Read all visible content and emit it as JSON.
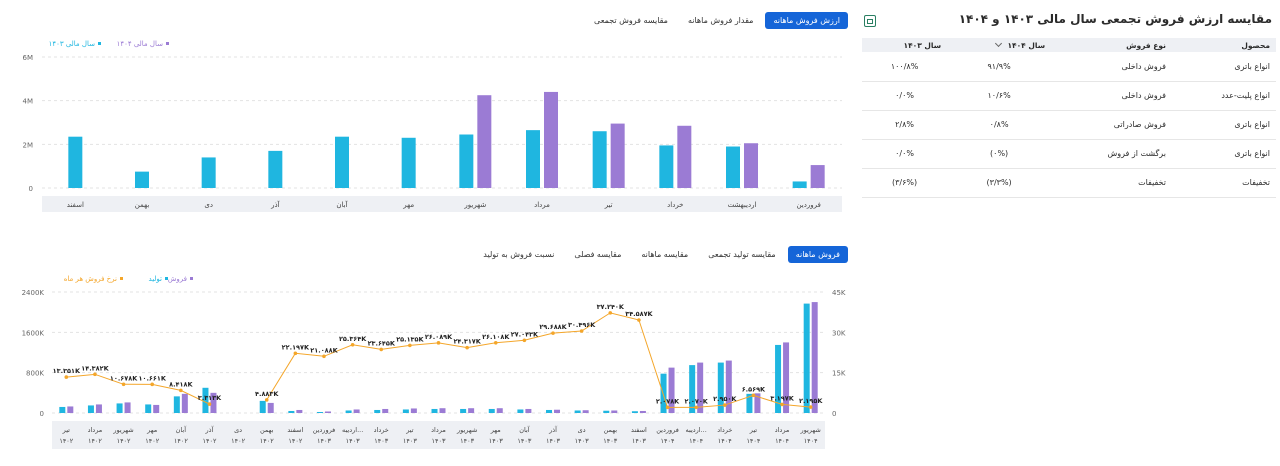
{
  "top_tabs": [
    "ارزش فروش ماهانه",
    "مقدار فروش ماهانه",
    "مقایسه فروش تجمعی"
  ],
  "bottom_tabs": [
    "فروش ماهانه",
    "مقایسه تولید تجمعی",
    "مقایسه ماهانه",
    "مقایسه فصلی",
    "نسبت فروش به تولید"
  ],
  "panel": {
    "title": "مقایسه ارزش فروش تجمعی سال مالی ۱۴۰۳ و ۱۴۰۴",
    "headers": [
      "محصول",
      "نوع فروش",
      "سال ۱۴۰۴",
      "سال ۱۴۰۳"
    ],
    "rows": [
      [
        "انواع باتری",
        "فروش داخلی",
        "۹۱/۹%",
        "۱۰۰/۸%"
      ],
      [
        "انواع پلیت-عدد",
        "فروش داخلی",
        "۱۰/۶%",
        "۰/۰%"
      ],
      [
        "انواع باتری",
        "فروش صادراتی",
        "۰/۸%",
        "۲/۸%"
      ],
      [
        "انواع باتری",
        "برگشت از فروش",
        "(۰%)",
        "۰/۰%"
      ],
      [
        "تخفیفات",
        "تخفیفات",
        "(۳/۳%)",
        "(۳/۶%)"
      ]
    ]
  },
  "chart_data": [
    {
      "type": "bar",
      "categories": [
        "فروردین",
        "اردیبهشت",
        "خرداد",
        "تیر",
        "مرداد",
        "شهریور",
        "مهر",
        "آبان",
        "آذر",
        "دی",
        "بهمن",
        "اسفند"
      ],
      "series": [
        {
          "name": "سال مالی ۱۴۰۳",
          "color": "#1fb6e0",
          "values": [
            0.3,
            1.9,
            1.95,
            2.6,
            2.65,
            2.45,
            2.3,
            2.35,
            1.7,
            1.4,
            0.75,
            2.35
          ]
        },
        {
          "name": "سال مالی ۱۴۰۴",
          "color": "#9b7bd4",
          "values": [
            1.05,
            2.05,
            2.85,
            2.95,
            4.4,
            4.25,
            null,
            null,
            null,
            null,
            null,
            null
          ]
        }
      ],
      "ytick_labels": [
        "0",
        "2M",
        "4M",
        "6M"
      ],
      "ylim": [
        0,
        6
      ]
    },
    {
      "type": "bar",
      "categories": [
        "تیر ۱۴۰۲",
        "مرداد ۱۴۰۲",
        "شهریور ۱۴۰۲",
        "مهر ۱۴۰۲",
        "آبان ۱۴۰۲",
        "آذر ۱۴۰۲",
        "دی ۱۴۰۲",
        "بهمن ۱۴۰۲",
        "اسفند ۱۴۰۲",
        "فروردین ۱۴۰۳",
        "اردیبه... ۱۴۰۳",
        "خرداد ۱۴۰۳",
        "تیر ۱۴۰۳",
        "مرداد ۱۴۰۳",
        "شهریور ۱۴۰۳",
        "مهر ۱۴۰۳",
        "آبان ۱۴۰۳",
        "آذر ۱۴۰۳",
        "دی ۱۴۰۳",
        "بهمن ۱۴۰۳",
        "اسفند ۱۴۰۳",
        "فروردین ۱۴۰۴",
        "اردیبه... ۱۴۰۴",
        "خرداد ۱۴۰۴",
        "تیر ۱۴۰۴",
        "مرداد ۱۴۰۴",
        "شهریور ۱۴۰۴"
      ],
      "series": [
        {
          "name": "فروش",
          "color": "#9b7bd4",
          "values": [
            130,
            170,
            210,
            160,
            380,
            400,
            0,
            200,
            60,
            30,
            70,
            80,
            90,
            95,
            95,
            95,
            80,
            65,
            55,
            50,
            40,
            900,
            1000,
            1040,
            390,
            1400,
            2200
          ]
        },
        {
          "name": "تولید",
          "color": "#1fb6e0",
          "values": [
            120,
            150,
            190,
            170,
            330,
            500,
            0,
            240,
            40,
            20,
            50,
            60,
            70,
            80,
            80,
            80,
            70,
            60,
            50,
            45,
            35,
            780,
            950,
            1000,
            380,
            1350,
            2170
          ]
        },
        {
          "name": "نرخ فروش هر ماه",
          "color": "#f4a62a",
          "values": [
            13351,
            14382,
            10678,
            10661,
            8418,
            3313,
            null,
            4883,
            22197,
            21088,
            25364,
            23645,
            25135,
            26089,
            24317,
            26108,
            27043,
            29688,
            30496,
            37240,
            34587,
            2078,
            2070,
            2950,
            6569,
            3197,
            2195
          ]
        }
      ],
      "point_labels": [
        "۱۳.۳۵۱K",
        "۱۴.۳۸۲K",
        "۱۰.۶۷۸K",
        "۱۰.۶۶۱K",
        "۸.۴۱۸K",
        "۳.۳۱۳K",
        "",
        "۴.۸۸۳K",
        "۲۲.۱۹۷K",
        "۲۱.۰۸۸K",
        "۲۵.۳۶۴K",
        "۲۳.۶۴۵K",
        "۲۵.۱۳۵K",
        "۲۶.۰۸۹K",
        "۲۴.۳۱۷K",
        "۲۶.۱۰۸K",
        "۲۷.۰۴۳K",
        "۲۹.۶۸۸K",
        "۳۰.۴۹۶K",
        "۳۷.۲۴۰K",
        "۳۴.۵۸۷K",
        "۲.۰۷۸K",
        "۲.۰۷۰K",
        "۲.۹۵۰K",
        "۶.۵۶۹K",
        "۳.۱۹۷K",
        "۲.۱۹۵K"
      ],
      "ytick_labels_left": [
        "0",
        "800K",
        "1600K",
        "2400K"
      ],
      "ylim_left": [
        0,
        2400
      ],
      "ytick_labels_right": [
        "0",
        "15K",
        "30K",
        "45K"
      ],
      "ylim_right": [
        0,
        45000
      ]
    }
  ]
}
